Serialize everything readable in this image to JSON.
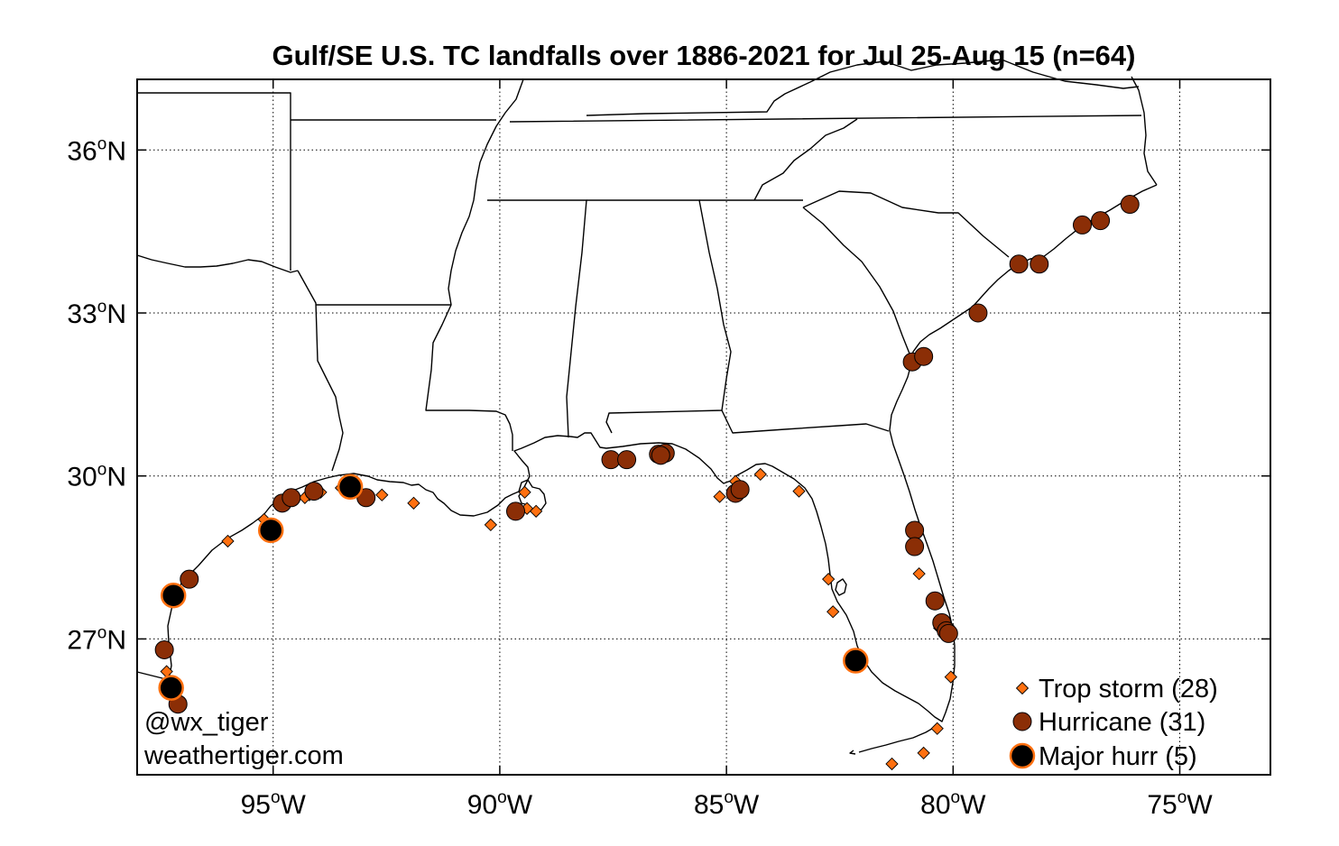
{
  "title": "Gulf/SE U.S. TC landfalls over 1886-2021 for Jul 25-Aug 15 (n=64)",
  "credits": [
    "@wx_tiger",
    "weathertiger.com"
  ],
  "colors": {
    "trop_storm_fill": "#ff7010",
    "hurricane_fill": "#8b2e06",
    "major_fill": "#000000",
    "major_outline": "#ff7010"
  },
  "legend": [
    {
      "category": "ts",
      "label": "Trop storm (28)"
    },
    {
      "category": "hu",
      "label": "Hurricane (31)"
    },
    {
      "category": "mh",
      "label": "Major hurr (5)"
    }
  ],
  "x_ticks": [
    {
      "value": -95,
      "label": "95",
      "hem": "W"
    },
    {
      "value": -90,
      "label": "90",
      "hem": "W"
    },
    {
      "value": -85,
      "label": "85",
      "hem": "W"
    },
    {
      "value": -80,
      "label": "80",
      "hem": "W"
    },
    {
      "value": -75,
      "label": "75",
      "hem": "W"
    }
  ],
  "y_ticks": [
    {
      "value": 27,
      "label": "27",
      "hem": "N"
    },
    {
      "value": 30,
      "label": "30",
      "hem": "N"
    },
    {
      "value": 33,
      "label": "33",
      "hem": "N"
    },
    {
      "value": 36,
      "label": "36",
      "hem": "N"
    }
  ],
  "degree_symbol": "o",
  "extent": {
    "lon": [
      -98.0,
      -73.0
    ],
    "lat": [
      24.5,
      37.3
    ]
  },
  "chart_data": {
    "type": "scatter",
    "title": "Gulf/SE U.S. TC landfalls over 1886-2021 for Jul 25-Aug 15 (n=64)",
    "xlabel": "",
    "ylabel": "",
    "xlim": [
      -98.0,
      -73.0
    ],
    "ylim": [
      24.5,
      37.3
    ],
    "grid": true,
    "legend_position": "bottom-right",
    "series": [
      {
        "name": "Trop storm (28)",
        "category": "ts",
        "points": [
          [
            -97.35,
            26.4
          ],
          [
            -96.0,
            28.8
          ],
          [
            -95.1,
            29.1
          ],
          [
            -95.2,
            29.2
          ],
          [
            -94.2,
            29.65
          ],
          [
            -94.3,
            29.6
          ],
          [
            -93.95,
            29.7
          ],
          [
            -93.5,
            29.78
          ],
          [
            -92.6,
            29.65
          ],
          [
            -91.9,
            29.5
          ],
          [
            -90.2,
            29.1
          ],
          [
            -89.45,
            29.7
          ],
          [
            -89.4,
            29.4
          ],
          [
            -89.2,
            29.35
          ],
          [
            -85.15,
            29.62
          ],
          [
            -84.8,
            29.9
          ],
          [
            -84.25,
            30.03
          ],
          [
            -83.4,
            29.72
          ],
          [
            -82.75,
            28.1
          ],
          [
            -82.65,
            27.5
          ],
          [
            -81.35,
            24.7
          ],
          [
            -80.65,
            24.9
          ],
          [
            -80.35,
            25.35
          ],
          [
            -80.05,
            26.3
          ],
          [
            -80.75,
            28.2
          ],
          [
            -80.3,
            27.2
          ],
          [
            -80.15,
            27.1
          ],
          [
            -89.7,
            29.3
          ]
        ]
      },
      {
        "name": "Hurricane (31)",
        "category": "hu",
        "points": [
          [
            -97.4,
            26.8
          ],
          [
            -97.1,
            25.8
          ],
          [
            -96.85,
            28.1
          ],
          [
            -95.05,
            28.95
          ],
          [
            -94.8,
            29.5
          ],
          [
            -94.6,
            29.6
          ],
          [
            -94.1,
            29.72
          ],
          [
            -93.35,
            29.82
          ],
          [
            -92.95,
            29.6
          ],
          [
            -89.65,
            29.35
          ],
          [
            -87.55,
            30.3
          ],
          [
            -87.2,
            30.3
          ],
          [
            -86.5,
            30.4
          ],
          [
            -86.35,
            30.42
          ],
          [
            -84.8,
            29.68
          ],
          [
            -80.85,
            29.0
          ],
          [
            -80.85,
            28.7
          ],
          [
            -80.4,
            27.7
          ],
          [
            -80.25,
            27.3
          ],
          [
            -80.15,
            27.15
          ],
          [
            -80.1,
            27.1
          ],
          [
            -80.9,
            32.1
          ],
          [
            -80.65,
            32.2
          ],
          [
            -79.45,
            33.0
          ],
          [
            -78.55,
            33.9
          ],
          [
            -78.1,
            33.9
          ],
          [
            -77.15,
            34.62
          ],
          [
            -76.75,
            34.7
          ],
          [
            -76.1,
            35.0
          ],
          [
            -84.7,
            29.75
          ],
          [
            -86.45,
            30.38
          ]
        ]
      },
      {
        "name": "Major hurr (5)",
        "category": "mh",
        "points": [
          [
            -97.2,
            27.8
          ],
          [
            -97.25,
            26.1
          ],
          [
            -95.05,
            29.0
          ],
          [
            -93.3,
            29.8
          ],
          [
            -82.15,
            26.6
          ]
        ]
      }
    ]
  }
}
